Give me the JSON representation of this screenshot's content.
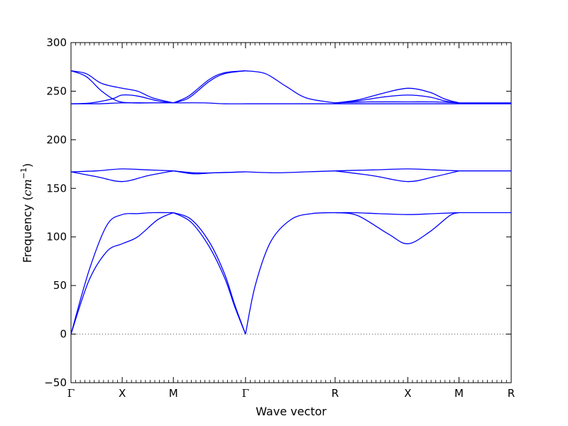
{
  "chart_data": {
    "type": "line",
    "title": "",
    "xlabel": "Wave vector",
    "ylabel_prefix": "Frequency (",
    "ylabel_unit": "cm",
    "ylabel_exponent": "−1",
    "ylabel_suffix": ")",
    "ylim": [
      -50,
      300
    ],
    "yticks": [
      -50,
      0,
      50,
      100,
      150,
      200,
      250,
      300
    ],
    "xlim": [
      0,
      8.6
    ],
    "xticks": [
      {
        "label": "Γ",
        "x": 0
      },
      {
        "label": "X",
        "x": 1
      },
      {
        "label": "M",
        "x": 2
      },
      {
        "label": "Γ",
        "x": 3.41
      },
      {
        "label": "R",
        "x": 5.16
      },
      {
        "label": "X",
        "x": 6.58
      },
      {
        "label": "M",
        "x": 7.58
      },
      {
        "label": "R",
        "x": 8.6
      }
    ],
    "zero_line": true,
    "grid": false,
    "line_color": "#0000ff",
    "zero_line_color": "#555555",
    "series": [
      {
        "x": [
          0,
          0.35,
          0.7,
          1.0,
          1.3,
          1.6,
          2.0
        ],
        "values": [
          0,
          65,
          112,
          123,
          124,
          125,
          125
        ]
      },
      {
        "x": [
          0,
          0.35,
          0.7,
          1.0,
          1.3,
          1.7,
          2.0
        ],
        "values": [
          0,
          55,
          85,
          93,
          100,
          118,
          125
        ]
      },
      {
        "x": [
          2.0,
          2.35,
          2.7,
          3.0,
          3.2,
          3.41
        ],
        "values": [
          125,
          118,
          95,
          62,
          30,
          0
        ]
      },
      {
        "x": [
          2.0,
          2.35,
          2.7,
          3.0,
          3.2,
          3.41
        ],
        "values": [
          125,
          115,
          90,
          58,
          28,
          0
        ]
      },
      {
        "x": [
          3.41,
          3.6,
          3.9,
          4.3,
          4.7,
          5.16
        ],
        "values": [
          0,
          50,
          95,
          118,
          124,
          125
        ]
      },
      {
        "x": [
          5.16,
          5.5,
          6.0,
          6.58,
          7.1,
          7.58
        ],
        "values": [
          125,
          125,
          124,
          123,
          124,
          125
        ]
      },
      {
        "x": [
          5.16,
          5.6,
          6.2,
          6.58,
          7.0,
          7.4,
          7.58
        ],
        "values": [
          125,
          122,
          103,
          93,
          105,
          122,
          125
        ]
      },
      {
        "x": [
          7.58,
          8.0,
          8.6
        ],
        "values": [
          125,
          125,
          125
        ]
      },
      {
        "x": [
          0,
          0.5,
          1.0,
          1.5,
          2.0
        ],
        "values": [
          167,
          168,
          170,
          169,
          168
        ]
      },
      {
        "x": [
          0,
          0.5,
          1.0,
          1.5,
          2.0
        ],
        "values": [
          167,
          162,
          157,
          163,
          168
        ]
      },
      {
        "x": [
          2.0,
          2.4,
          2.8,
          3.41
        ],
        "values": [
          168,
          166,
          166,
          167
        ]
      },
      {
        "x": [
          2.0,
          2.4,
          2.8,
          3.41
        ],
        "values": [
          168,
          165,
          166,
          167
        ]
      },
      {
        "x": [
          3.41,
          4.0,
          4.6,
          5.16
        ],
        "values": [
          167,
          166,
          167,
          168
        ]
      },
      {
        "x": [
          5.16,
          5.9,
          6.58,
          7.1,
          7.58
        ],
        "values": [
          168,
          169,
          170,
          169,
          168
        ]
      },
      {
        "x": [
          5.16,
          5.9,
          6.58,
          7.1,
          7.58
        ],
        "values": [
          168,
          163,
          157,
          162,
          168
        ]
      },
      {
        "x": [
          7.58,
          8.0,
          8.6
        ],
        "values": [
          168,
          168,
          168
        ]
      },
      {
        "x": [
          0,
          0.3,
          0.6,
          1.0,
          1.3,
          1.6,
          2.0
        ],
        "values": [
          271,
          268,
          258,
          253,
          250,
          243,
          238
        ]
      },
      {
        "x": [
          0,
          0.3,
          0.6,
          0.9,
          1.2,
          1.6,
          2.0
        ],
        "values": [
          271,
          265,
          250,
          240,
          238,
          238,
          238
        ]
      },
      {
        "x": [
          0,
          0.4,
          0.8,
          1.0,
          1.3,
          1.7,
          2.0
        ],
        "values": [
          237,
          238,
          242,
          246,
          245,
          240,
          238
        ]
      },
      {
        "x": [
          0,
          0.5,
          1.0,
          1.5,
          2.0
        ],
        "values": [
          237,
          237,
          238,
          238,
          238
        ]
      },
      {
        "x": [
          2.0,
          2.3,
          2.7,
          3.0,
          3.41
        ],
        "values": [
          238,
          245,
          262,
          269,
          271
        ]
      },
      {
        "x": [
          2.0,
          2.3,
          2.7,
          3.0,
          3.41
        ],
        "values": [
          238,
          243,
          260,
          268,
          271
        ]
      },
      {
        "x": [
          2.0,
          2.6,
          3.0,
          3.41
        ],
        "values": [
          238,
          238,
          237,
          237
        ]
      },
      {
        "x": [
          3.41,
          3.8,
          4.2,
          4.6,
          5.16
        ],
        "values": [
          271,
          268,
          255,
          243,
          238
        ]
      },
      {
        "x": [
          3.41,
          4.0,
          4.6,
          5.16
        ],
        "values": [
          237,
          237,
          237,
          237
        ]
      },
      {
        "x": [
          5.16,
          5.6,
          6.1,
          6.58,
          7.0,
          7.3,
          7.58
        ],
        "values": [
          238,
          241,
          248,
          253,
          249,
          242,
          238
        ]
      },
      {
        "x": [
          5.16,
          5.6,
          6.1,
          6.58,
          7.0,
          7.3,
          7.58
        ],
        "values": [
          238,
          240,
          244,
          246,
          244,
          240,
          238
        ]
      },
      {
        "x": [
          5.16,
          5.8,
          6.58,
          7.1,
          7.58
        ],
        "values": [
          238,
          239,
          239,
          239,
          238
        ]
      },
      {
        "x": [
          5.16,
          6.0,
          6.58,
          7.2,
          7.58
        ],
        "values": [
          237,
          237,
          237,
          237,
          237
        ]
      },
      {
        "x": [
          7.58,
          8.0,
          8.6
        ],
        "values": [
          238,
          238,
          238
        ]
      },
      {
        "x": [
          7.58,
          8.0,
          8.6
        ],
        "values": [
          237,
          237,
          237
        ]
      }
    ]
  }
}
